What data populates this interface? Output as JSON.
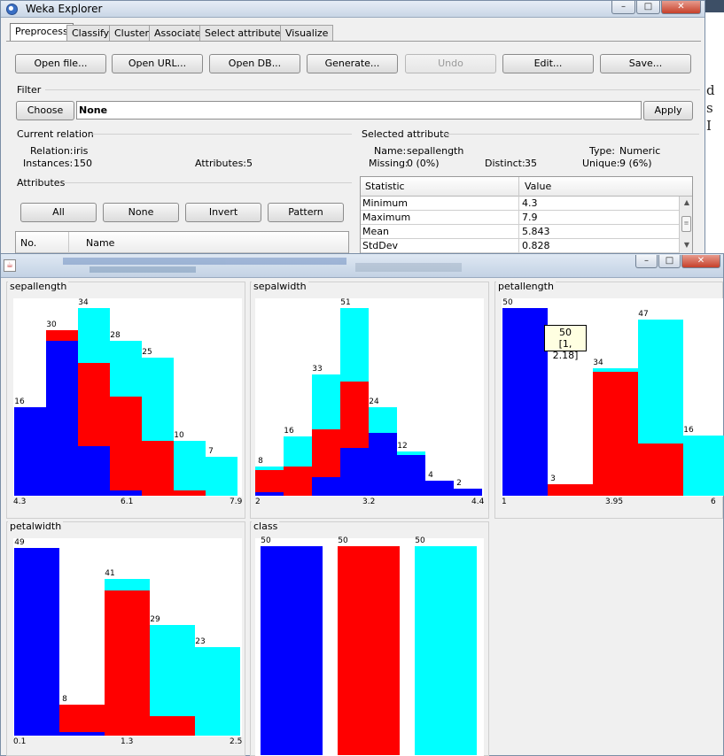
{
  "explorer": {
    "title": "Weka Explorer",
    "tabs": [
      "Preprocess",
      "Classify",
      "Cluster",
      "Associate",
      "Select attributes",
      "Visualize"
    ],
    "active_tab": "Preprocess",
    "toolbar": {
      "open_file": "Open file...",
      "open_url": "Open URL...",
      "open_db": "Open DB...",
      "generate": "Generate...",
      "undo": "Undo",
      "edit": "Edit...",
      "save": "Save..."
    },
    "filter": {
      "section_label": "Filter",
      "choose_label": "Choose",
      "value": "None",
      "apply_label": "Apply"
    },
    "current_relation": {
      "section_label": "Current relation",
      "relation_label": "Relation:",
      "relation_value": "iris",
      "instances_label": "Instances:",
      "instances_value": "150",
      "attributes_label": "Attributes:",
      "attributes_value": "5"
    },
    "attributes": {
      "section_label": "Attributes",
      "all_label": "All",
      "none_label": "None",
      "invert_label": "Invert",
      "pattern_label": "Pattern",
      "col_no": "No.",
      "col_name": "Name"
    },
    "selected_attribute": {
      "section_label": "Selected attribute",
      "name_label": "Name:",
      "name_value": "sepallength",
      "type_label": "Type:",
      "type_value": "Numeric",
      "missing_label": "Missing:",
      "missing_value": "0 (0%)",
      "distinct_label": "Distinct:",
      "distinct_value": "35",
      "unique_label": "Unique:",
      "unique_value": "9 (6%)",
      "table_headers": [
        "Statistic",
        "Value"
      ],
      "stats": [
        {
          "statistic": "Minimum",
          "value": "4.3"
        },
        {
          "statistic": "Maximum",
          "value": "7.9"
        },
        {
          "statistic": "Mean",
          "value": "5.843"
        },
        {
          "statistic": "StdDev",
          "value": "0.828"
        }
      ]
    }
  },
  "desktop_glyphs": [
    "d",
    "s",
    "I"
  ],
  "visualize": {
    "tooltip": {
      "count": "50",
      "range": "[1, 2.18]"
    },
    "colors": {
      "class1": "#0000ff",
      "class2": "#ff0000",
      "class3": "#00ffff"
    }
  },
  "chart_data": [
    {
      "type": "bar",
      "title": "sepallength",
      "x_ticks": [
        "4.3",
        "6.1",
        "7.9"
      ],
      "stacked": true,
      "bin_totals": [
        16,
        30,
        34,
        28,
        25,
        10,
        7
      ],
      "series": [
        {
          "values": [
            16,
            28,
            9,
            1,
            0,
            0,
            0
          ]
        },
        {
          "values": [
            0,
            2,
            15,
            17,
            10,
            1,
            0
          ]
        },
        {
          "values": [
            0,
            0,
            10,
            10,
            15,
            9,
            7
          ]
        }
      ]
    },
    {
      "type": "bar",
      "title": "sepalwidth",
      "x_ticks": [
        "2",
        "3.2",
        "4.4"
      ],
      "stacked": true,
      "bin_totals": [
        8,
        16,
        33,
        51,
        24,
        12,
        4,
        2
      ],
      "series": [
        {
          "values": [
            1,
            0,
            5,
            13,
            17,
            11,
            4,
            2
          ]
        },
        {
          "values": [
            6,
            8,
            13,
            18,
            0,
            0,
            0,
            0
          ]
        },
        {
          "values": [
            1,
            8,
            15,
            20,
            7,
            1,
            0,
            0
          ]
        }
      ]
    },
    {
      "type": "bar",
      "title": "petallength",
      "x_ticks": [
        "1",
        "3.95",
        "6"
      ],
      "stacked": true,
      "bin_totals": [
        50,
        3,
        34,
        47,
        16
      ],
      "series": [
        {
          "values": [
            50,
            0,
            0,
            0,
            0
          ]
        },
        {
          "values": [
            0,
            3,
            33,
            14,
            0
          ]
        },
        {
          "values": [
            0,
            0,
            1,
            33,
            16
          ]
        }
      ]
    },
    {
      "type": "bar",
      "title": "petalwidth",
      "x_ticks": [
        "0.1",
        "1.3",
        "2.5"
      ],
      "stacked": true,
      "bin_totals": [
        49,
        8,
        41,
        29,
        23
      ],
      "series": [
        {
          "values": [
            49,
            1,
            0,
            0,
            0
          ]
        },
        {
          "values": [
            0,
            7,
            38,
            5,
            0
          ]
        },
        {
          "values": [
            0,
            0,
            3,
            24,
            23
          ]
        }
      ]
    },
    {
      "type": "bar",
      "title": "class",
      "x_ticks": [],
      "stacked": false,
      "bin_totals": [
        50,
        50,
        50
      ],
      "series": [
        {
          "values": [
            50,
            0,
            0
          ]
        },
        {
          "values": [
            0,
            50,
            0
          ]
        },
        {
          "values": [
            0,
            0,
            50
          ]
        }
      ]
    }
  ]
}
